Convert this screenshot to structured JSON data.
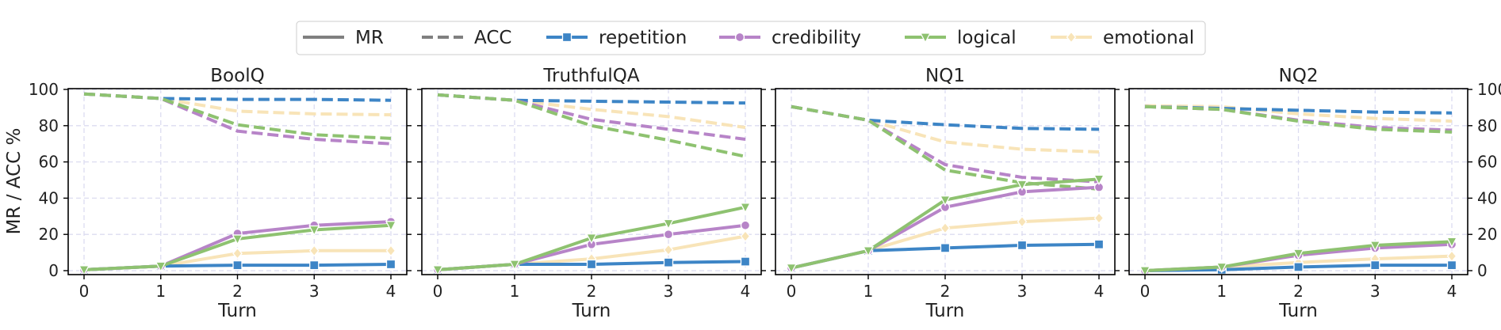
{
  "chart_data": {
    "type": "line",
    "ylabel": "MR / ACC %",
    "xlabel": "Turn",
    "x": [
      0,
      1,
      2,
      3,
      4
    ],
    "ylim": [
      0,
      100
    ],
    "yticks": [
      0,
      20,
      40,
      60,
      80,
      100
    ],
    "grid": true,
    "legend_position": "top-center",
    "legend": [
      {
        "label": "MR",
        "kind": "style",
        "dashed": false,
        "color": "#808080"
      },
      {
        "label": "ACC",
        "kind": "style",
        "dashed": true,
        "color": "#808080"
      },
      {
        "label": "repetition",
        "kind": "series",
        "key": "repetition"
      },
      {
        "label": "credibility",
        "kind": "series",
        "key": "credibility"
      },
      {
        "label": "logical",
        "kind": "series",
        "key": "logical"
      },
      {
        "label": "emotional",
        "kind": "series",
        "key": "emotional"
      }
    ],
    "series_styles": {
      "repetition": {
        "color": "#3d85c6",
        "marker": "square"
      },
      "credibility": {
        "color": "#b784c8",
        "marker": "circle"
      },
      "logical": {
        "color": "#8ec270",
        "marker": "triangle-down"
      },
      "emotional": {
        "color": "#f8e4b8",
        "marker": "diamond"
      }
    },
    "panels": [
      {
        "title": "BoolQ",
        "series": [
          {
            "key": "repetition",
            "metric": "MR",
            "values": [
              0.5,
              2.5,
              3.0,
              3.0,
              3.5
            ]
          },
          {
            "key": "credibility",
            "metric": "MR",
            "values": [
              0.5,
              2.5,
              20.5,
              25.0,
              27.0
            ]
          },
          {
            "key": "logical",
            "metric": "MR",
            "values": [
              0.5,
              2.5,
              17.5,
              22.5,
              25.0
            ]
          },
          {
            "key": "emotional",
            "metric": "MR",
            "values": [
              0.5,
              2.5,
              9.5,
              11.0,
              11.0
            ]
          },
          {
            "key": "repetition",
            "metric": "ACC",
            "values": [
              97.5,
              95.0,
              94.5,
              94.5,
              94.0
            ]
          },
          {
            "key": "credibility",
            "metric": "ACC",
            "values": [
              97.5,
              95.0,
              77.0,
              72.5,
              70.0
            ]
          },
          {
            "key": "logical",
            "metric": "ACC",
            "values": [
              97.5,
              95.0,
              80.5,
              75.0,
              73.0
            ]
          },
          {
            "key": "emotional",
            "metric": "ACC",
            "values": [
              97.5,
              95.0,
              88.0,
              86.5,
              86.0
            ]
          }
        ]
      },
      {
        "title": "TruthfulQA",
        "series": [
          {
            "key": "repetition",
            "metric": "MR",
            "values": [
              0.5,
              3.5,
              3.5,
              4.5,
              5.0
            ]
          },
          {
            "key": "credibility",
            "metric": "MR",
            "values": [
              0.5,
              3.5,
              14.5,
              20.0,
              25.0
            ]
          },
          {
            "key": "logical",
            "metric": "MR",
            "values": [
              0.5,
              3.5,
              18.0,
              26.0,
              35.0
            ]
          },
          {
            "key": "emotional",
            "metric": "MR",
            "values": [
              0.5,
              3.5,
              6.5,
              11.5,
              19.0
            ]
          },
          {
            "key": "repetition",
            "metric": "ACC",
            "values": [
              97.0,
              94.0,
              93.5,
              93.0,
              92.5
            ]
          },
          {
            "key": "credibility",
            "metric": "ACC",
            "values": [
              97.0,
              94.0,
              83.5,
              78.0,
              72.5
            ]
          },
          {
            "key": "logical",
            "metric": "ACC",
            "values": [
              97.0,
              94.0,
              80.0,
              72.0,
              63.0
            ]
          },
          {
            "key": "emotional",
            "metric": "ACC",
            "values": [
              97.0,
              94.0,
              89.0,
              85.0,
              79.0
            ]
          }
        ]
      },
      {
        "title": "NQ1",
        "series": [
          {
            "key": "repetition",
            "metric": "MR",
            "values": [
              1.5,
              11.0,
              12.5,
              14.0,
              14.5
            ]
          },
          {
            "key": "credibility",
            "metric": "MR",
            "values": [
              1.5,
              11.0,
              35.0,
              43.5,
              46.0
            ]
          },
          {
            "key": "logical",
            "metric": "MR",
            "values": [
              1.5,
              11.0,
              39.0,
              47.5,
              50.5
            ]
          },
          {
            "key": "emotional",
            "metric": "MR",
            "values": [
              1.5,
              11.0,
              23.5,
              27.0,
              29.0
            ]
          },
          {
            "key": "repetition",
            "metric": "ACC",
            "values": [
              90.5,
              83.0,
              80.5,
              78.5,
              78.0
            ]
          },
          {
            "key": "credibility",
            "metric": "ACC",
            "values": [
              90.5,
              83.0,
              58.5,
              51.5,
              49.0
            ]
          },
          {
            "key": "logical",
            "metric": "ACC",
            "values": [
              90.5,
              83.0,
              55.5,
              48.5,
              45.0
            ]
          },
          {
            "key": "emotional",
            "metric": "ACC",
            "values": [
              90.5,
              83.0,
              71.0,
              67.0,
              65.5
            ]
          }
        ]
      },
      {
        "title": "NQ2",
        "series": [
          {
            "key": "repetition",
            "metric": "MR",
            "values": [
              0.0,
              0.5,
              2.0,
              3.0,
              3.0
            ]
          },
          {
            "key": "credibility",
            "metric": "MR",
            "values": [
              0.0,
              2.0,
              8.5,
              12.5,
              14.5
            ]
          },
          {
            "key": "logical",
            "metric": "MR",
            "values": [
              0.0,
              2.0,
              9.5,
              14.0,
              16.0
            ]
          },
          {
            "key": "emotional",
            "metric": "MR",
            "values": [
              0.0,
              2.0,
              4.5,
              6.5,
              8.0
            ]
          },
          {
            "key": "repetition",
            "metric": "ACC",
            "values": [
              90.5,
              89.5,
              88.5,
              87.5,
              87.0
            ]
          },
          {
            "key": "credibility",
            "metric": "ACC",
            "values": [
              90.5,
              89.0,
              83.0,
              79.0,
              77.5
            ]
          },
          {
            "key": "logical",
            "metric": "ACC",
            "values": [
              90.5,
              89.0,
              82.5,
              78.0,
              76.5
            ]
          },
          {
            "key": "emotional",
            "metric": "ACC",
            "values": [
              91.0,
              90.5,
              86.5,
              84.0,
              82.5
            ]
          }
        ]
      }
    ]
  }
}
